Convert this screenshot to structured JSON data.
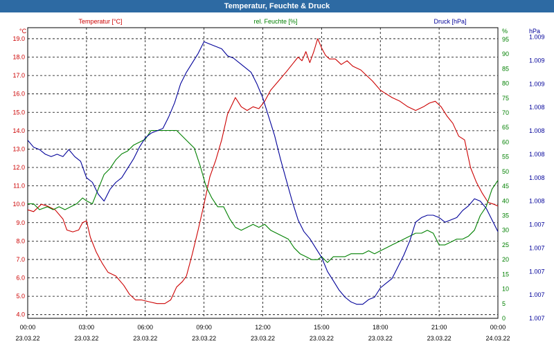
{
  "window": {
    "title": "Temperatur, Feuchte & Druck"
  },
  "chart_data": {
    "type": "line",
    "x_ticks": [
      {
        "time": "00:00",
        "date": "23.03.22"
      },
      {
        "time": "03:00",
        "date": "23.03.22"
      },
      {
        "time": "06:00",
        "date": "23.03.22"
      },
      {
        "time": "09:00",
        "date": "23.03.22"
      },
      {
        "time": "12:00",
        "date": "23.03.22"
      },
      {
        "time": "15:00",
        "date": "23.03.22"
      },
      {
        "time": "18:00",
        "date": "23.03.22"
      },
      {
        "time": "21:00",
        "date": "23.03.22"
      },
      {
        "time": "00:00",
        "date": "24.03.22"
      }
    ],
    "xlim": [
      0,
      24
    ],
    "grid": true,
    "axes": {
      "temperature": {
        "label": "°C",
        "ticks": [
          "4.0",
          "5.0",
          "6.0",
          "7.0",
          "8.0",
          "9.0",
          "10.0",
          "11.0",
          "12.0",
          "13.0",
          "14.0",
          "15.0",
          "16.0",
          "17.0",
          "18.0",
          "19.0"
        ],
        "ylim": [
          3.8,
          19.6
        ]
      },
      "humidity": {
        "label": "%",
        "ticks": [
          "0",
          "5",
          "10",
          "15",
          "20",
          "25",
          "30",
          "35",
          "40",
          "45",
          "50",
          "55",
          "60",
          "65",
          "70",
          "75",
          "80",
          "85",
          "90",
          "95"
        ],
        "ylim": [
          0,
          99
        ]
      },
      "pressure": {
        "label": "hPa",
        "ticks": [
          "1.007",
          "1.007",
          "1.007",
          "1.007",
          "1.007",
          "1.008",
          "1.008",
          "1.008",
          "1.008",
          "1.008",
          "1.009",
          "1.009",
          "1.009"
        ],
        "ylim": [
          0,
          12.4
        ]
      }
    },
    "series": [
      {
        "name": "Temperatur [°C]",
        "axis": "temperature",
        "color": "#cc0000",
        "x": [
          0,
          0.3,
          0.7,
          1,
          1.4,
          1.8,
          2,
          2.3,
          2.6,
          2.8,
          3,
          3.2,
          3.5,
          3.8,
          4.1,
          4.5,
          4.9,
          5.2,
          5.5,
          5.8,
          6.2,
          6.6,
          7,
          7.3,
          7.6,
          7.9,
          8.1,
          8.4,
          8.7,
          9,
          9.3,
          9.6,
          9.9,
          10.2,
          10.6,
          10.9,
          11.2,
          11.5,
          11.8,
          12.1,
          12.4,
          12.8,
          13.2,
          13.5,
          13.8,
          14,
          14.2,
          14.4,
          14.6,
          14.8,
          15,
          15.2,
          15.4,
          15.7,
          16,
          16.3,
          16.6,
          17,
          17.3,
          17.6,
          18,
          18.3,
          18.6,
          19,
          19.4,
          19.8,
          20.2,
          20.5,
          20.8,
          21.1,
          21.4,
          21.7,
          22,
          22.3,
          22.6,
          22.9,
          23.2,
          23.5,
          23.8,
          24
        ],
        "y": [
          9.7,
          9.6,
          10,
          9.9,
          9.7,
          9.2,
          8.6,
          8.5,
          8.6,
          9,
          9.1,
          8.2,
          7.4,
          6.8,
          6.3,
          6.1,
          5.6,
          5.1,
          4.8,
          4.8,
          4.7,
          4.6,
          4.6,
          4.8,
          5.5,
          5.8,
          6.1,
          7.3,
          8.6,
          10,
          11.5,
          12.4,
          13.5,
          14.9,
          15.8,
          15.3,
          15.1,
          15.3,
          15.2,
          15.6,
          16.2,
          16.7,
          17.2,
          17.6,
          18,
          17.8,
          18.3,
          17.7,
          18.3,
          19,
          18.5,
          18.1,
          17.9,
          17.9,
          17.6,
          17.8,
          17.5,
          17.3,
          17,
          16.7,
          16.2,
          16,
          15.8,
          15.6,
          15.3,
          15.1,
          15.3,
          15.5,
          15.6,
          15.3,
          14.8,
          14.4,
          13.7,
          13.5,
          12,
          11.2,
          10.6,
          10.1,
          10,
          9.9
        ]
      },
      {
        "name": "rel. Feuchte [%]",
        "axis": "humidity",
        "color": "#008000",
        "x": [
          0,
          0.3,
          0.6,
          1,
          1.3,
          1.6,
          1.9,
          2.2,
          2.5,
          2.8,
          3,
          3.3,
          3.6,
          3.9,
          4.2,
          4.5,
          4.8,
          5.1,
          5.4,
          5.7,
          6,
          6.3,
          6.6,
          7,
          7.3,
          7.6,
          7.9,
          8.2,
          8.5,
          8.8,
          9.1,
          9.4,
          9.7,
          10,
          10.3,
          10.6,
          10.9,
          11.2,
          11.5,
          11.8,
          12.1,
          12.4,
          12.7,
          13,
          13.3,
          13.6,
          13.9,
          14.2,
          14.5,
          14.8,
          15,
          15.3,
          15.6,
          15.9,
          16.2,
          16.5,
          16.8,
          17.1,
          17.4,
          17.7,
          18,
          18.3,
          18.6,
          18.9,
          19.2,
          19.5,
          19.8,
          20.1,
          20.4,
          20.7,
          21,
          21.3,
          21.6,
          21.9,
          22.2,
          22.5,
          22.8,
          23.1,
          23.4,
          23.7,
          24
        ],
        "y": [
          39,
          39,
          37,
          38,
          37,
          38,
          37,
          38,
          39,
          41,
          40,
          39,
          44,
          49,
          51,
          54,
          56,
          57,
          59,
          60,
          61,
          64,
          64,
          64,
          64,
          64,
          62,
          60,
          58,
          52,
          45,
          41,
          38,
          38,
          34,
          31,
          30,
          31,
          32,
          31,
          32,
          30,
          29,
          28,
          27,
          24,
          22,
          21,
          20,
          20,
          21,
          19,
          21,
          21,
          21,
          22,
          22,
          22,
          23,
          22,
          23,
          24,
          25,
          26,
          27,
          28,
          29,
          29,
          30,
          29,
          25,
          25,
          26,
          27,
          27,
          28,
          30,
          35,
          38,
          44,
          47
        ]
      },
      {
        "name": "Druck [hPa]",
        "axis": "pressure",
        "color": "#000099",
        "x": [
          0,
          0.3,
          0.6,
          0.9,
          1.2,
          1.5,
          1.8,
          2.1,
          2.4,
          2.7,
          3,
          3.3,
          3.6,
          3.9,
          4.2,
          4.5,
          4.8,
          5.1,
          5.4,
          5.7,
          6,
          6.3,
          6.6,
          6.9,
          7.2,
          7.5,
          7.8,
          8.1,
          8.4,
          8.7,
          9,
          9.3,
          9.6,
          9.9,
          10.2,
          10.5,
          10.8,
          11.1,
          11.4,
          11.7,
          12,
          12.3,
          12.6,
          12.9,
          13.2,
          13.5,
          13.8,
          14.1,
          14.4,
          14.7,
          15,
          15.3,
          15.6,
          15.9,
          16.2,
          16.5,
          16.8,
          17.1,
          17.4,
          17.7,
          18,
          18.3,
          18.6,
          18.9,
          19.2,
          19.5,
          19.8,
          20.1,
          20.4,
          20.7,
          21,
          21.3,
          21.6,
          21.9,
          22.2,
          22.5,
          22.8,
          23.1,
          23.4,
          23.7,
          24
        ],
        "y": [
          7.6,
          7.3,
          7.2,
          7,
          6.9,
          7,
          6.9,
          7.2,
          6.9,
          6.7,
          6,
          5.8,
          5.3,
          5,
          5.5,
          5.8,
          6,
          6.4,
          6.8,
          7.3,
          7.7,
          7.9,
          8,
          8.1,
          8.6,
          9.2,
          10,
          10.5,
          10.9,
          11.3,
          11.8,
          11.7,
          11.6,
          11.5,
          11.2,
          11.1,
          10.9,
          10.7,
          10.5,
          10,
          9.4,
          8.6,
          7.8,
          6.8,
          5.9,
          5,
          4.2,
          3.7,
          3.4,
          3,
          2.6,
          2,
          1.6,
          1.2,
          0.9,
          0.7,
          0.6,
          0.6,
          0.8,
          0.9,
          1.3,
          1.5,
          1.7,
          2.2,
          2.7,
          3.3,
          4.1,
          4.3,
          4.4,
          4.4,
          4.3,
          4.1,
          4.2,
          4.3,
          4.6,
          4.8,
          5.1,
          5,
          4.7,
          4.2,
          3.7
        ]
      }
    ],
    "legend": [
      "Temperatur [°C]",
      "rel. Feuchte [%]",
      "Druck [hPa]"
    ],
    "legend_colors": [
      "#cc0000",
      "#008000",
      "#000099"
    ],
    "legend_placement": "top"
  }
}
